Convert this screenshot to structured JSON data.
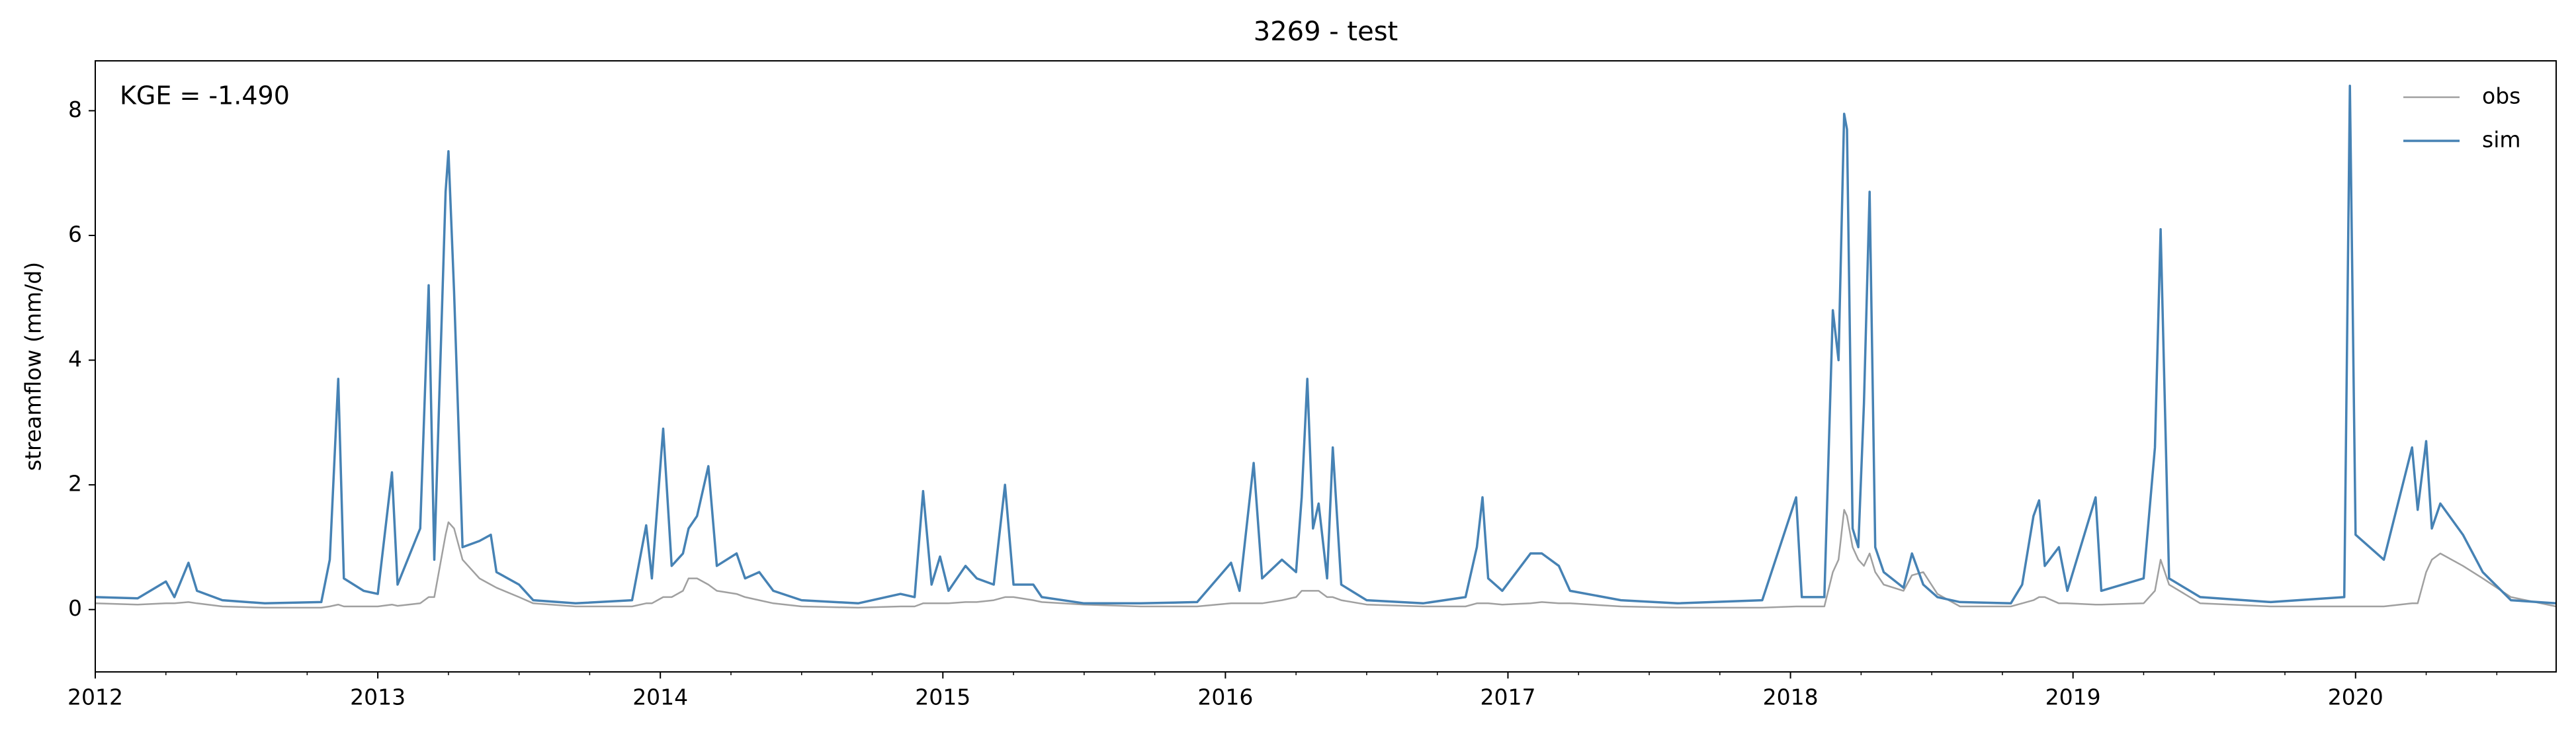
{
  "chart_data": {
    "type": "line",
    "title": "3269 - test",
    "ylabel": "streamflow (mm/d)",
    "annotation": "KGE = -1.490",
    "legend": "upper right",
    "xlim": [
      2012,
      2020.71
    ],
    "xticks": [
      2012,
      2013,
      2014,
      2015,
      2016,
      2017,
      2018,
      2019,
      2020
    ],
    "xminorticks": [
      2012.25,
      2012.5,
      2012.75,
      2013.25,
      2013.5,
      2013.75,
      2014.25,
      2014.5,
      2014.75,
      2015.25,
      2015.5,
      2015.75,
      2016.25,
      2016.5,
      2016.75,
      2017.25,
      2017.5,
      2017.75,
      2018.25,
      2018.5,
      2018.75,
      2019.25,
      2019.5,
      2019.75,
      2020.25,
      2020.5
    ],
    "ylim": [
      -1,
      8.8
    ],
    "yticks": [
      0,
      2,
      4,
      6,
      8
    ],
    "x": [
      2012.0,
      2012.15,
      2012.25,
      2012.28,
      2012.33,
      2012.36,
      2012.45,
      2012.6,
      2012.8,
      2012.83,
      2012.86,
      2012.88,
      2012.95,
      2013.0,
      2013.05,
      2013.07,
      2013.15,
      2013.18,
      2013.2,
      2013.24,
      2013.25,
      2013.27,
      2013.3,
      2013.36,
      2013.4,
      2013.42,
      2013.5,
      2013.55,
      2013.7,
      2013.9,
      2013.95,
      2013.97,
      2014.01,
      2014.04,
      2014.08,
      2014.1,
      2014.13,
      2014.17,
      2014.2,
      2014.27,
      2014.3,
      2014.35,
      2014.4,
      2014.5,
      2014.7,
      2014.85,
      2014.9,
      2014.93,
      2014.96,
      2014.99,
      2015.02,
      2015.08,
      2015.12,
      2015.18,
      2015.22,
      2015.25,
      2015.32,
      2015.35,
      2015.5,
      2015.7,
      2015.9,
      2016.02,
      2016.05,
      2016.1,
      2016.13,
      2016.2,
      2016.25,
      2016.27,
      2016.29,
      2016.31,
      2016.33,
      2016.36,
      2016.38,
      2016.41,
      2016.5,
      2016.7,
      2016.85,
      2016.89,
      2016.91,
      2016.93,
      2016.98,
      2017.08,
      2017.12,
      2017.18,
      2017.22,
      2017.4,
      2017.6,
      2017.9,
      2018.02,
      2018.04,
      2018.12,
      2018.15,
      2018.17,
      2018.19,
      2018.2,
      2018.22,
      2018.24,
      2018.26,
      2018.28,
      2018.3,
      2018.33,
      2018.4,
      2018.43,
      2018.47,
      2018.52,
      2018.6,
      2018.78,
      2018.82,
      2018.86,
      2018.88,
      2018.9,
      2018.95,
      2018.98,
      2019.08,
      2019.1,
      2019.25,
      2019.29,
      2019.31,
      2019.34,
      2019.45,
      2019.7,
      2019.96,
      2019.98,
      2020.0,
      2020.1,
      2020.2,
      2020.22,
      2020.25,
      2020.27,
      2020.3,
      2020.38,
      2020.45,
      2020.55,
      2020.71
    ],
    "series": [
      {
        "name": "obs",
        "color": "#a0a0a0",
        "values": [
          0.1,
          0.08,
          0.1,
          0.1,
          0.12,
          0.1,
          0.05,
          0.03,
          0.03,
          0.05,
          0.08,
          0.05,
          0.05,
          0.05,
          0.08,
          0.06,
          0.1,
          0.2,
          0.2,
          1.2,
          1.4,
          1.3,
          0.8,
          0.5,
          0.4,
          0.35,
          0.2,
          0.1,
          0.05,
          0.05,
          0.1,
          0.1,
          0.2,
          0.2,
          0.3,
          0.5,
          0.5,
          0.4,
          0.3,
          0.25,
          0.2,
          0.15,
          0.1,
          0.05,
          0.03,
          0.05,
          0.05,
          0.1,
          0.1,
          0.1,
          0.1,
          0.12,
          0.12,
          0.15,
          0.2,
          0.2,
          0.15,
          0.12,
          0.08,
          0.05,
          0.05,
          0.1,
          0.1,
          0.1,
          0.1,
          0.15,
          0.2,
          0.3,
          0.3,
          0.3,
          0.3,
          0.2,
          0.2,
          0.15,
          0.08,
          0.05,
          0.05,
          0.1,
          0.1,
          0.1,
          0.08,
          0.1,
          0.12,
          0.1,
          0.1,
          0.05,
          0.03,
          0.03,
          0.05,
          0.05,
          0.05,
          0.6,
          0.8,
          1.6,
          1.5,
          1.0,
          0.8,
          0.7,
          0.9,
          0.6,
          0.4,
          0.3,
          0.55,
          0.6,
          0.25,
          0.05,
          0.05,
          0.1,
          0.15,
          0.2,
          0.2,
          0.1,
          0.1,
          0.08,
          0.08,
          0.1,
          0.3,
          0.8,
          0.4,
          0.1,
          0.05,
          0.05,
          0.05,
          0.05,
          0.05,
          0.1,
          0.1,
          0.6,
          0.8,
          0.9,
          0.7,
          0.5,
          0.2,
          0.05
        ]
      },
      {
        "name": "sim",
        "color": "#4682b4",
        "values": [
          0.2,
          0.18,
          0.45,
          0.2,
          0.75,
          0.3,
          0.15,
          0.1,
          0.12,
          0.8,
          3.7,
          0.5,
          0.3,
          0.25,
          2.2,
          0.4,
          1.3,
          5.2,
          0.8,
          6.7,
          7.35,
          5.1,
          1.0,
          1.1,
          1.2,
          0.6,
          0.4,
          0.15,
          0.1,
          0.15,
          1.35,
          0.5,
          2.9,
          0.7,
          0.9,
          1.3,
          1.5,
          2.3,
          0.7,
          0.9,
          0.5,
          0.6,
          0.3,
          0.15,
          0.1,
          0.25,
          0.2,
          1.9,
          0.4,
          0.85,
          0.3,
          0.7,
          0.5,
          0.4,
          2.0,
          0.4,
          0.4,
          0.2,
          0.1,
          0.1,
          0.12,
          0.75,
          0.3,
          2.35,
          0.5,
          0.8,
          0.6,
          1.8,
          3.7,
          1.3,
          1.7,
          0.5,
          2.6,
          0.4,
          0.15,
          0.1,
          0.2,
          1.0,
          1.8,
          0.5,
          0.3,
          0.9,
          0.9,
          0.7,
          0.3,
          0.15,
          0.1,
          0.15,
          1.8,
          0.2,
          0.2,
          4.8,
          4.0,
          7.95,
          7.7,
          1.3,
          1.0,
          3.3,
          6.7,
          1.0,
          0.6,
          0.35,
          0.9,
          0.4,
          0.2,
          0.12,
          0.1,
          0.4,
          1.5,
          1.75,
          0.7,
          1.0,
          0.3,
          1.8,
          0.3,
          0.5,
          2.6,
          6.1,
          0.5,
          0.2,
          0.12,
          0.2,
          8.4,
          1.2,
          0.8,
          2.6,
          1.6,
          2.7,
          1.3,
          1.7,
          1.2,
          0.6,
          0.15,
          0.1
        ]
      }
    ]
  }
}
